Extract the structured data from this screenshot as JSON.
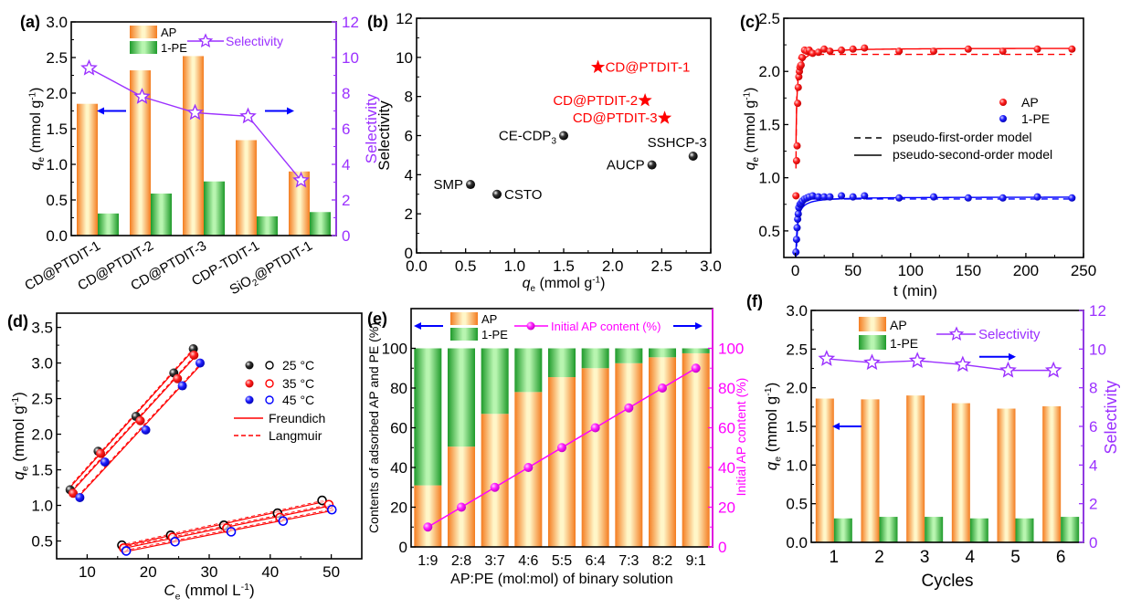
{
  "chart_data": [
    {
      "panel": "(a)",
      "type": "bar",
      "categories": [
        "CD@PTDIT-1",
        "CD@PTDIT-2",
        "CD@PTDIT-3",
        "CDP-TDIT-1",
        "SiO2@PTDIT-1"
      ],
      "category_display": [
        {
          "main": "CD@PTDIT-1",
          "pre": "",
          "sub": "",
          "post": ""
        },
        {
          "main": "CD@PTDIT-2",
          "pre": "",
          "sub": "",
          "post": ""
        },
        {
          "main": "CD@PTDIT-3",
          "pre": "",
          "sub": "",
          "post": ""
        },
        {
          "main": "CDP-TDIT-1",
          "pre": "",
          "sub": "",
          "post": ""
        },
        {
          "main": "",
          "pre": "SiO",
          "sub": "2",
          "post": "@PTDIT-1"
        }
      ],
      "series": [
        {
          "name": "AP",
          "axis": "left",
          "values": [
            1.85,
            2.32,
            2.52,
            1.34,
            0.9
          ]
        },
        {
          "name": "1-PE",
          "axis": "left",
          "values": [
            0.31,
            0.59,
            0.76,
            0.27,
            0.33
          ]
        },
        {
          "name": "Selectivity",
          "axis": "right",
          "kind": "line-star",
          "values": [
            9.4,
            7.8,
            6.9,
            6.7,
            3.1
          ]
        }
      ],
      "ylabel": "q_e (mmol g-1)",
      "ylabel_parts": {
        "q": "q",
        "sub": "e",
        "unit": " (mmol g",
        "sup": "-1",
        "close": ")"
      },
      "ylabel_right": "Selectivity",
      "ylim": [
        0,
        3.0
      ],
      "yticks": [
        "0.0",
        "0.5",
        "1.0",
        "1.5",
        "2.0",
        "2.5",
        "3.0"
      ],
      "ylim_right": [
        0,
        12
      ],
      "yticks_right": [
        "0",
        "2",
        "4",
        "6",
        "8",
        "10",
        "12"
      ],
      "legend": [
        "AP",
        "1-PE",
        "Selectivity"
      ],
      "legend_placement": "top"
    },
    {
      "panel": "(b)",
      "type": "scatter",
      "points": [
        {
          "label": "CD@PTDIT-1",
          "x": 1.85,
          "y": 9.5,
          "marker": "star",
          "color": "#ff0000",
          "label_pos": "right"
        },
        {
          "label": "CD@PTDIT-2",
          "x": 2.33,
          "y": 7.8,
          "marker": "star",
          "color": "#ff0000",
          "label_pos": "left"
        },
        {
          "label": "CD@PTDIT-3",
          "x": 2.53,
          "y": 6.9,
          "marker": "star",
          "color": "#ff0000",
          "label_pos": "left"
        },
        {
          "label": "CE-CDP",
          "label_sub": "3",
          "x": 1.5,
          "y": 6.0,
          "marker": "sphere",
          "color": "#000000",
          "label_pos": "left"
        },
        {
          "label": "SSHCP-3",
          "x": 2.82,
          "y": 4.95,
          "marker": "sphere",
          "color": "#000000",
          "label_pos": "above-left"
        },
        {
          "label": "AUCP",
          "x": 2.4,
          "y": 4.5,
          "marker": "sphere",
          "color": "#000000",
          "label_pos": "left"
        },
        {
          "label": "SMP",
          "x": 0.55,
          "y": 3.5,
          "marker": "sphere",
          "color": "#000000",
          "label_pos": "left"
        },
        {
          "label": "CSTO",
          "x": 0.82,
          "y": 3.0,
          "marker": "sphere",
          "color": "#000000",
          "label_pos": "right"
        }
      ],
      "xlabel": "q_e (mmol g-1)",
      "ylabel": "Selectivity",
      "xlim": [
        0,
        3.0
      ],
      "xticks": [
        "0.0",
        "0.5",
        "1.0",
        "1.5",
        "2.0",
        "2.5",
        "3.0"
      ],
      "ylim": [
        0,
        12
      ],
      "yticks": [
        "0",
        "2",
        "4",
        "6",
        "8",
        "10",
        "12"
      ]
    },
    {
      "panel": "(c)",
      "type": "line",
      "series": [
        {
          "name": "AP",
          "color": "#ff0000",
          "x": [
            0.5,
            1,
            1.5,
            2,
            2.5,
            3,
            3.5,
            4,
            5,
            6,
            8,
            10,
            12,
            15,
            20,
            25,
            30,
            40,
            50,
            60,
            90,
            120,
            150,
            180,
            210,
            240
          ],
          "y": [
            0.83,
            1.16,
            1.3,
            1.7,
            1.85,
            1.95,
            2.0,
            2.04,
            2.06,
            2.13,
            2.2,
            2.19,
            2.2,
            2.17,
            2.18,
            2.21,
            2.19,
            2.2,
            2.21,
            2.22,
            2.19,
            2.19,
            2.21,
            2.19,
            2.21,
            2.21
          ],
          "qe_pfo": 2.16,
          "qe_pso": 2.22
        },
        {
          "name": "1-PE",
          "color": "#0000ff",
          "x": [
            0.5,
            1,
            1.5,
            2,
            2.5,
            3,
            4,
            5,
            6,
            8,
            10,
            12,
            15,
            20,
            25,
            30,
            40,
            50,
            60,
            90,
            120,
            150,
            180,
            210,
            240
          ],
          "y": [
            0.3,
            0.42,
            0.53,
            0.61,
            0.66,
            0.72,
            0.75,
            0.76,
            0.78,
            0.8,
            0.81,
            0.82,
            0.83,
            0.82,
            0.82,
            0.82,
            0.83,
            0.82,
            0.83,
            0.81,
            0.82,
            0.81,
            0.81,
            0.82,
            0.81
          ],
          "qe_pfo": 0.8,
          "qe_pso": 0.82
        }
      ],
      "models": [
        "pseudo-first-order model",
        "pseudo-second-order model"
      ],
      "xlabel": "t (min)",
      "ylabel": "q_e (mmol g-1)",
      "xlim": [
        -10,
        250
      ],
      "xticks": [
        "0",
        "50",
        "100",
        "150",
        "200",
        "250"
      ],
      "ylim": [
        0.25,
        2.5
      ],
      "yticks": [
        "0.5",
        "1.0",
        "1.5",
        "2.0",
        "2.5"
      ],
      "legend": [
        "AP",
        "1-PE",
        "pseudo-first-order model",
        "pseudo-second-order model"
      ],
      "legend_placement": "right"
    },
    {
      "panel": "(d)",
      "type": "scatter",
      "series": [
        {
          "name": "25 °C",
          "color": "#000000",
          "filled": {
            "x": [
              7.2,
              11.8,
              18.0,
              24.2,
              27.4
            ],
            "y": [
              1.22,
              1.76,
              2.25,
              2.86,
              3.2
            ]
          },
          "open": {
            "x": [
              15.7,
              23.7,
              32.4,
              41.2,
              48.5
            ],
            "y": [
              0.44,
              0.58,
              0.72,
              0.89,
              1.07
            ]
          }
        },
        {
          "name": "35 °C",
          "color": "#ff0000",
          "filled": {
            "x": [
              7.7,
              12.2,
              18.7,
              24.8,
              27.5
            ],
            "y": [
              1.17,
              1.73,
              2.19,
              2.78,
              3.11
            ]
          },
          "open": {
            "x": [
              16.0,
              24.0,
              32.9,
              41.6,
              49.6
            ],
            "y": [
              0.4,
              0.55,
              0.68,
              0.83,
              1.01
            ]
          }
        },
        {
          "name": "45 °C",
          "color": "#0000ff",
          "filled": {
            "x": [
              8.8,
              12.9,
              19.6,
              25.6,
              28.5
            ],
            "y": [
              1.11,
              1.61,
              2.06,
              2.68,
              3.0
            ]
          },
          "open": {
            "x": [
              16.4,
              24.4,
              33.6,
              42.1,
              50.1
            ],
            "y": [
              0.36,
              0.49,
              0.63,
              0.78,
              0.94
            ]
          }
        }
      ],
      "fits": [
        "Freundich",
        "Langmuir"
      ],
      "xlabel": "C_e (mmol L-1)",
      "ylabel": "q_e (mmol g-1)",
      "xlim": [
        5,
        55
      ],
      "xticks": [
        "10",
        "20",
        "30",
        "40",
        "50"
      ],
      "ylim": [
        0.25,
        3.7
      ],
      "yticks": [
        "0.5",
        "1.0",
        "1.5",
        "2.0",
        "2.5",
        "3.0",
        "3.5"
      ],
      "legend": [
        "25 °C",
        "35 °C",
        "45 °C",
        "Freundich",
        "Langmuir"
      ],
      "legend_placement": "top-right"
    },
    {
      "panel": "(e)",
      "type": "bar",
      "stacked": true,
      "categories": [
        "1:9",
        "2:8",
        "3:7",
        "4:6",
        "5:5",
        "6:4",
        "7:3",
        "8:2",
        "9:1"
      ],
      "series": [
        {
          "name": "AP",
          "axis": "left",
          "values": [
            31,
            50.5,
            67,
            78,
            85.5,
            90,
            92.5,
            95.5,
            97.5
          ]
        },
        {
          "name": "1-PE",
          "axis": "left",
          "values": [
            69,
            49.5,
            33,
            22,
            14.5,
            10,
            7.5,
            4.5,
            2.5
          ]
        },
        {
          "name": "Initial AP content (%)",
          "axis": "right",
          "kind": "line-dot",
          "values": [
            10,
            20,
            30,
            40,
            50,
            60,
            70,
            80,
            90
          ]
        }
      ],
      "xlabel": "AP:PE (mol:mol) of binary solution",
      "ylabel": "Contents of adsorbed AP and PE (%)",
      "ylabel_right": "Initial AP content (%)",
      "ylim": [
        0,
        120
      ],
      "yticks": [
        "0",
        "20",
        "40",
        "60",
        "80",
        "100"
      ],
      "ylim_right": [
        0,
        120
      ],
      "yticks_right": [
        "0",
        "20",
        "40",
        "60",
        "80",
        "100"
      ],
      "legend": [
        "AP",
        "1-PE",
        "Initial AP content (%)"
      ],
      "legend_placement": "top"
    },
    {
      "panel": "(f)",
      "type": "bar",
      "categories": [
        "1",
        "2",
        "3",
        "4",
        "5",
        "6"
      ],
      "series": [
        {
          "name": "AP",
          "axis": "left",
          "values": [
            1.86,
            1.85,
            1.9,
            1.8,
            1.73,
            1.76
          ]
        },
        {
          "name": "1-PE",
          "axis": "left",
          "values": [
            0.31,
            0.33,
            0.33,
            0.31,
            0.31,
            0.33
          ]
        },
        {
          "name": "Selectivity",
          "axis": "right",
          "kind": "line-star",
          "values": [
            9.5,
            9.3,
            9.4,
            9.2,
            8.9,
            8.9
          ]
        }
      ],
      "xlabel": "Cycles",
      "ylabel": "q_e (mmol g-1)",
      "ylabel_right": "Selectivity",
      "ylim": [
        0,
        3.0
      ],
      "yticks": [
        "0.0",
        "0.5",
        "1.0",
        "1.5",
        "2.0",
        "2.5",
        "3.0"
      ],
      "ylim_right": [
        0,
        12
      ],
      "yticks_right": [
        "0",
        "2",
        "4",
        "6",
        "8",
        "10",
        "12"
      ],
      "legend": [
        "AP",
        "1-PE",
        "Selectivity"
      ],
      "legend_placement": "top"
    }
  ],
  "panel_labels": [
    "(a)",
    "(b)",
    "(c)",
    "(d)",
    "(e)",
    "(f)"
  ],
  "text": {
    "qe_q": "q",
    "qe_sub": "e",
    "ce_c": "C",
    "mmolg_open": " (mmol g",
    "mmolL_open": " (mmol L",
    "sup_minus1": "-1",
    "close_paren": ")",
    "selectivity": "Selectivity",
    "t_min": "t (min)",
    "cycles": "Cycles",
    "e_xlabel": "AP:PE (mol:mol) of binary solution",
    "e_ylabel": "Contents of adsorbed AP and PE (%)",
    "e_ylabel_right": "Initial AP content (%)"
  },
  "colors": {
    "ap_dark": "#f47c20",
    "ap_light": "#fff6c8",
    "pe_dark": "#1e9a2a",
    "pe_light": "#b8f5b0",
    "selectivity": "#9b30ff",
    "arrow": "#0000ff",
    "red": "#ff0000",
    "blue": "#0000ff",
    "magenta": "#ff00ff",
    "black": "#000000"
  }
}
